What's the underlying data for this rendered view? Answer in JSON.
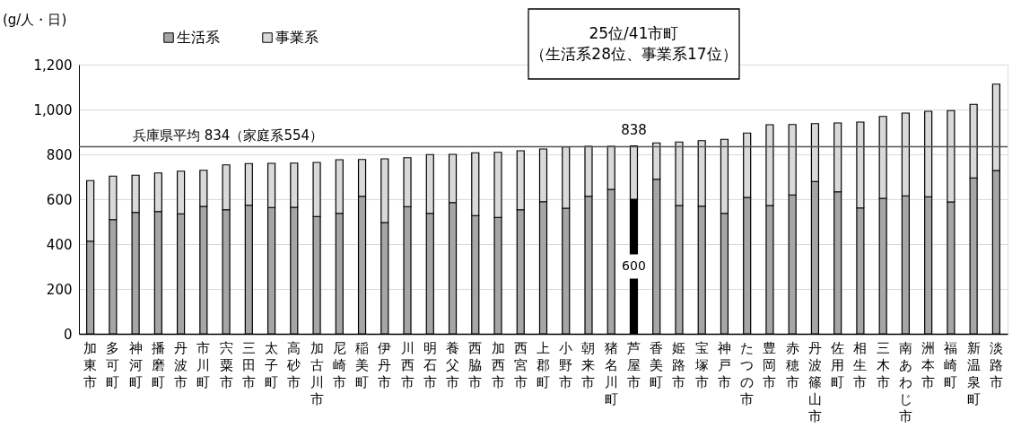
{
  "chart_data": {
    "type": "bar",
    "stacked": true,
    "ylabel": "(g/人・日)",
    "categories": [
      "加東市",
      "多可町",
      "神河町",
      "播磨町",
      "丹波市",
      "市川町",
      "宍粟市",
      "三田市",
      "太子町",
      "高砂市",
      "加古川市",
      "尼崎市",
      "稲美町",
      "伊丹市",
      "川西市",
      "明石市",
      "養父市",
      "西脇市",
      "加西市",
      "西宮市",
      "上郡町",
      "小野市",
      "朝来市",
      "猪名川町",
      "芦屋市",
      "香美町",
      "姫路市",
      "宝塚市",
      "神戸市",
      "たつの市",
      "豊岡市",
      "赤穂市",
      "丹波篠山市",
      "佐用町",
      "相生市",
      "三木市",
      "南あわじ市",
      "洲本市",
      "福崎町",
      "新温泉町",
      "淡路市"
    ],
    "series": [
      {
        "name": "生活系",
        "color": "#a6a6a6",
        "colors": [
          "#a6a6a6",
          "#a6a6a6",
          "#a6a6a6",
          "#a6a6a6",
          "#a6a6a6",
          "#a6a6a6",
          "#a6a6a6",
          "#a6a6a6",
          "#a6a6a6",
          "#a6a6a6",
          "#a6a6a6",
          "#a6a6a6",
          "#a6a6a6",
          "#a6a6a6",
          "#a6a6a6",
          "#a6a6a6",
          "#a6a6a6",
          "#a6a6a6",
          "#a6a6a6",
          "#a6a6a6",
          "#a6a6a6",
          "#a6a6a6",
          "#a6a6a6",
          "#a6a6a6",
          "#000000",
          "#a6a6a6",
          "#a6a6a6",
          "#a6a6a6",
          "#a6a6a6",
          "#a6a6a6",
          "#a6a6a6",
          "#a6a6a6",
          "#a6a6a6",
          "#a6a6a6",
          "#a6a6a6",
          "#a6a6a6",
          "#a6a6a6",
          "#a6a6a6",
          "#a6a6a6",
          "#a6a6a6",
          "#a6a6a6"
        ],
        "values": [
          413,
          509,
          541,
          545,
          535,
          568,
          553,
          573,
          563,
          564,
          523,
          537,
          613,
          496,
          567,
          537,
          585,
          527,
          519,
          553,
          589,
          560,
          613,
          644,
          600,
          689,
          572,
          569,
          537,
          608,
          572,
          619,
          679,
          633,
          561,
          604,
          615,
          611,
          588,
          695,
          728
        ],
        "value_labels": [
          null,
          null,
          null,
          null,
          null,
          null,
          null,
          null,
          null,
          null,
          null,
          null,
          null,
          null,
          null,
          null,
          null,
          null,
          null,
          null,
          null,
          null,
          null,
          null,
          "600",
          null,
          null,
          null,
          null,
          null,
          null,
          null,
          null,
          null,
          null,
          null,
          null,
          null,
          null,
          null,
          null
        ]
      },
      {
        "name": "事業系",
        "color": "#d9d9d9",
        "values": [
          270,
          194,
          166,
          172,
          190,
          161,
          200,
          186,
          197,
          197,
          241,
          239,
          164,
          284,
          218,
          262,
          215,
          280,
          290,
          263,
          235,
          273,
          223,
          192,
          238,
          162,
          283,
          292,
          330,
          287,
          360,
          314,
          258,
          307,
          383,
          365,
          369,
          381,
          407,
          328,
          385
        ]
      }
    ],
    "totals": [
      null,
      null,
      null,
      null,
      null,
      null,
      null,
      null,
      null,
      null,
      null,
      null,
      null,
      null,
      null,
      null,
      null,
      null,
      null,
      null,
      null,
      null,
      null,
      null,
      "838",
      null,
      null,
      null,
      null,
      null,
      null,
      null,
      null,
      null,
      null,
      null,
      null,
      null,
      null,
      null,
      null
    ],
    "ylim": [
      0,
      1200
    ],
    "yticks": [
      0,
      200,
      400,
      600,
      800,
      {
        "value": 1000,
        "label": "1,000"
      },
      {
        "value": 1200,
        "label": "1,200"
      }
    ],
    "grid": "y",
    "legend": "top left",
    "ref_lines": [
      {
        "axis": "y",
        "value": 834,
        "label": "兵庫県平均 834（家庭系554）",
        "color": "#555555"
      }
    ],
    "annotations": [
      "25位/41市町（生活系28位、事業系17位）"
    ]
  }
}
